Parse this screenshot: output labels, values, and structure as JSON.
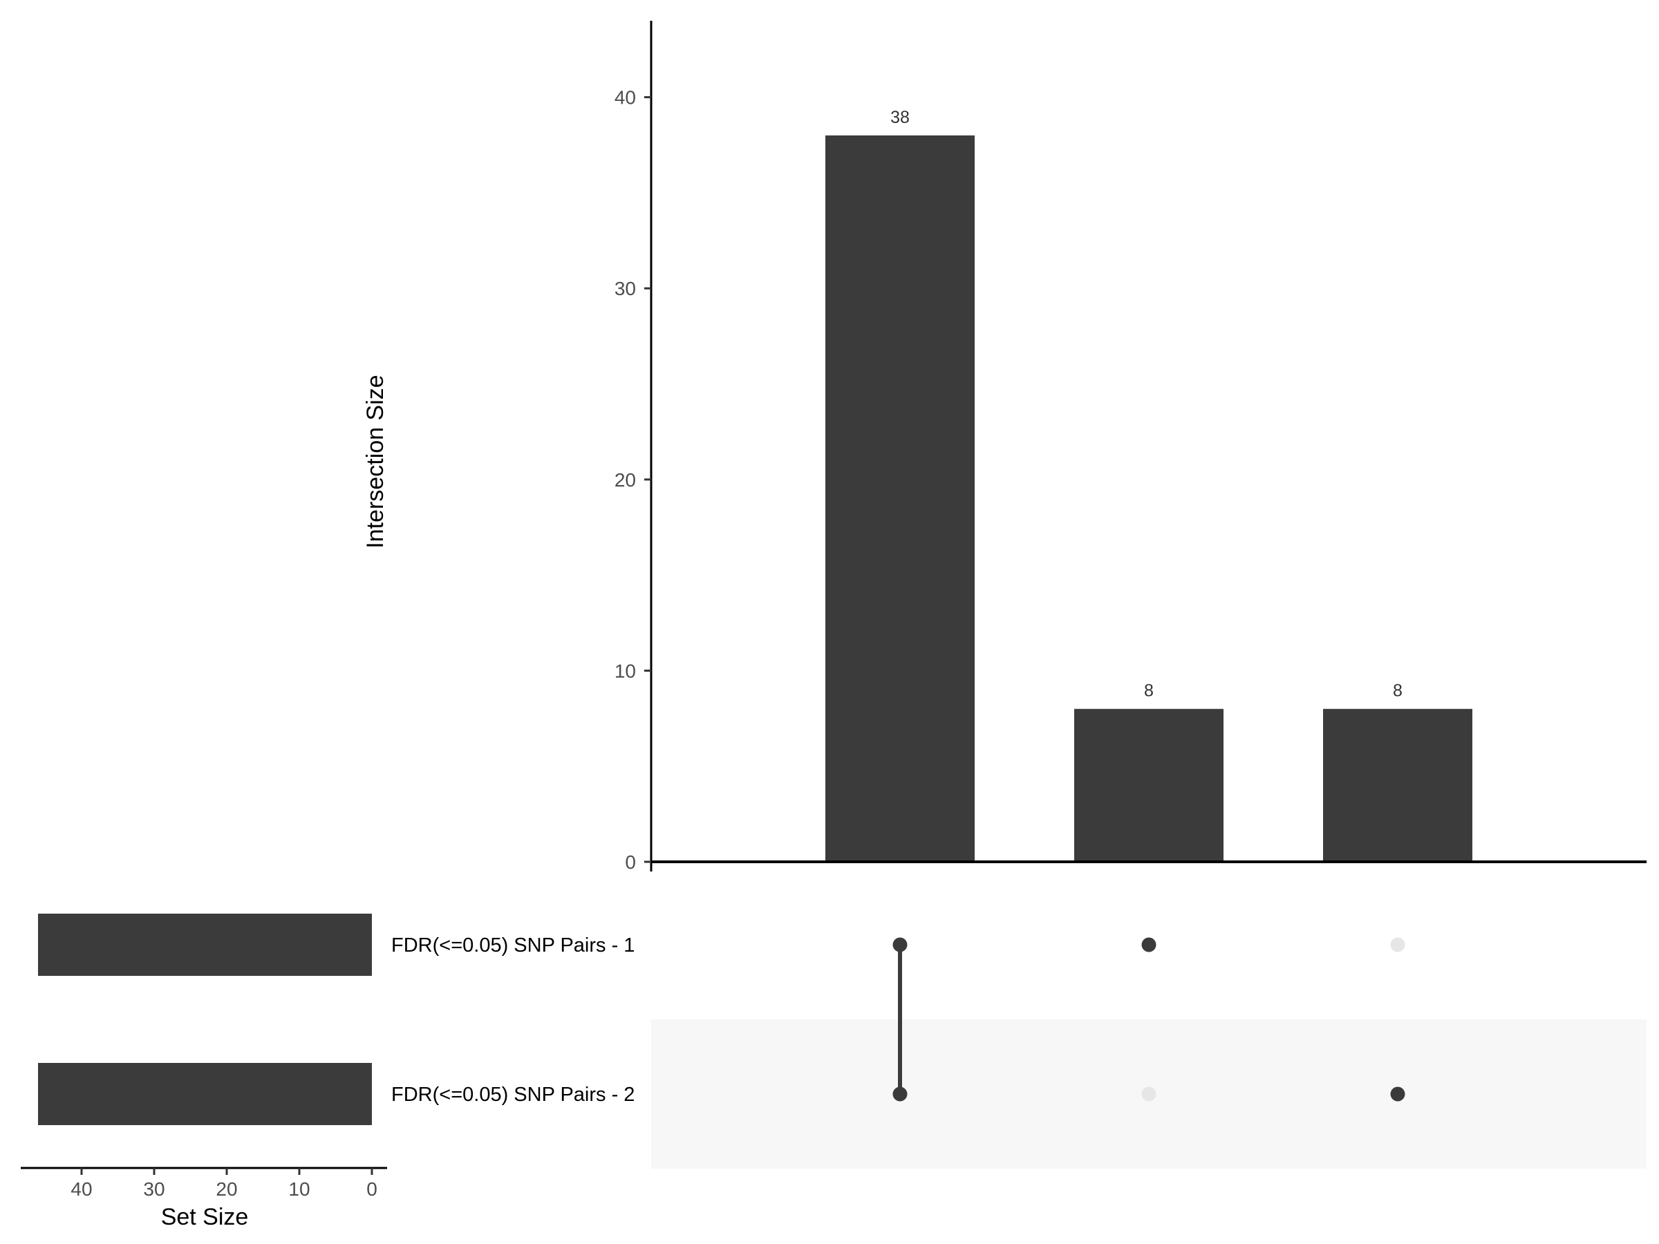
{
  "chart_data": {
    "type": "bar",
    "subtype": "upset",
    "intersections": {
      "ylabel": "Intersection Size",
      "ylim": [
        0,
        44
      ],
      "yticks": [
        0,
        10,
        20,
        30,
        40
      ],
      "values": [
        38,
        8,
        8
      ],
      "labels": [
        "38",
        "8",
        "8"
      ],
      "membership": [
        [
          true,
          true
        ],
        [
          true,
          false
        ],
        [
          false,
          true
        ]
      ]
    },
    "sets": {
      "names": [
        "FDR(<=0.05) SNP Pairs - 1",
        "FDR(<=0.05) SNP Pairs - 2"
      ],
      "sizes": [
        46,
        46
      ],
      "xlabel": "Set Size",
      "xlim": [
        0,
        50
      ],
      "xticks": [
        40,
        30,
        20,
        10,
        0
      ]
    },
    "grid": false,
    "colors": {
      "bar": "#3b3b3b",
      "dot_active": "#3b3b3b",
      "dot_inactive": "#e6e6e6",
      "row_shade": "#f7f7f7",
      "axis": "#000000"
    }
  }
}
